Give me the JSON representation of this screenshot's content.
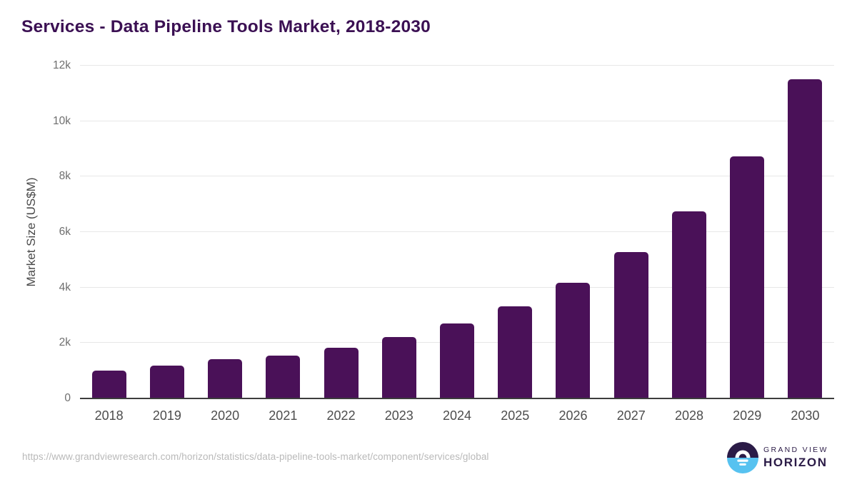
{
  "title": "Services - Data Pipeline Tools Market, 2018-2030",
  "chart_data": {
    "type": "bar",
    "title": "Services - Data Pipeline Tools Market, 2018-2030",
    "categories": [
      "2018",
      "2019",
      "2020",
      "2021",
      "2022",
      "2023",
      "2024",
      "2025",
      "2026",
      "2027",
      "2028",
      "2029",
      "2030"
    ],
    "values": [
      1000,
      1180,
      1420,
      1550,
      1830,
      2220,
      2700,
      3330,
      4160,
      5280,
      6750,
      8730,
      11500
    ],
    "xlabel": "",
    "ylabel": "Market Size (US$M)",
    "ylim": [
      0,
      12000
    ],
    "ytick_values": [
      0,
      2000,
      4000,
      6000,
      8000,
      10000,
      12000
    ],
    "ytick_labels": [
      "0",
      "2k",
      "4k",
      "6k",
      "8k",
      "10k",
      "12k"
    ],
    "grid": true,
    "legend": "none",
    "bar_color": "#4a1158"
  },
  "colors": {
    "title_purple": "#3b1053",
    "bar_purple": "#4a1158",
    "gridline": "#e7e7e7",
    "axis_line": "#3d3d3d",
    "logo_dark": "#2b1b47",
    "logo_blue": "#57c2f0"
  },
  "footer": {
    "source_url": "https://www.grandviewresearch.com/horizon/statistics/data-pipeline-tools-market/component/services/global",
    "logo": {
      "icon": "horizon-sunrise-circle-icon",
      "line1": "GRAND VIEW",
      "line2": "HORIZON"
    }
  }
}
